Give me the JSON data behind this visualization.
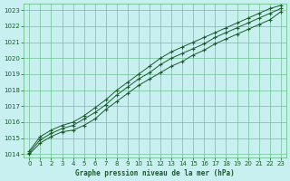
{
  "title": "Graphe pression niveau de la mer (hPa)",
  "bg_color": "#c8f0f0",
  "grid_color": "#5cb87a",
  "line_color": "#1a5c2a",
  "marker_color": "#1a5c2a",
  "xlim": [
    -0.5,
    23.5
  ],
  "ylim": [
    1013.8,
    1023.4
  ],
  "xticks": [
    0,
    1,
    2,
    3,
    4,
    5,
    6,
    7,
    8,
    9,
    10,
    11,
    12,
    13,
    14,
    15,
    16,
    17,
    18,
    19,
    20,
    21,
    22,
    23
  ],
  "yticks": [
    1014,
    1015,
    1016,
    1017,
    1018,
    1019,
    1020,
    1021,
    1022,
    1023
  ],
  "line1": [
    1014.0,
    1014.7,
    1015.1,
    1015.4,
    1015.5,
    1015.8,
    1016.2,
    1016.8,
    1017.3,
    1017.8,
    1018.3,
    1018.7,
    1019.1,
    1019.5,
    1019.8,
    1020.2,
    1020.5,
    1020.9,
    1021.2,
    1021.5,
    1021.8,
    1022.1,
    1022.4,
    1022.9
  ],
  "line2": [
    1014.1,
    1014.9,
    1015.3,
    1015.6,
    1015.8,
    1016.2,
    1016.6,
    1017.1,
    1017.7,
    1018.2,
    1018.7,
    1019.1,
    1019.6,
    1020.0,
    1020.3,
    1020.6,
    1020.9,
    1021.3,
    1021.6,
    1021.9,
    1022.2,
    1022.5,
    1022.8,
    1023.1
  ],
  "line3": [
    1014.2,
    1015.1,
    1015.5,
    1015.8,
    1016.0,
    1016.4,
    1016.9,
    1017.4,
    1018.0,
    1018.5,
    1019.0,
    1019.5,
    1020.0,
    1020.4,
    1020.7,
    1021.0,
    1021.3,
    1021.6,
    1021.9,
    1022.2,
    1022.5,
    1022.8,
    1023.1,
    1023.3
  ]
}
